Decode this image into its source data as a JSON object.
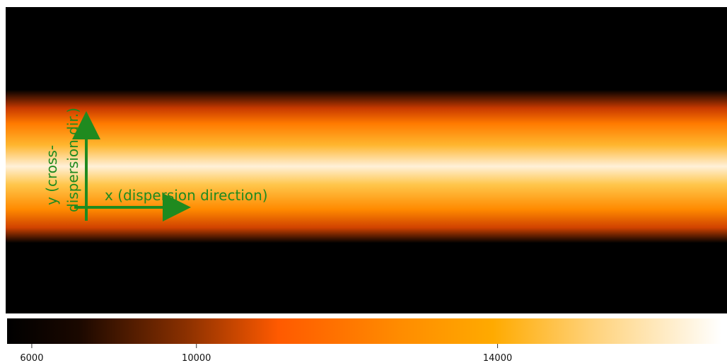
{
  "chart_data": {
    "type": "image",
    "annotations": [
      "x (dispersion direction)",
      "y (cross-",
      "dispersion dir.)"
    ],
    "colorbar": {
      "clim": [
        4930,
        16120
      ],
      "scale_power": 2.5,
      "ticks": [
        6000,
        10000,
        14000
      ]
    }
  }
}
